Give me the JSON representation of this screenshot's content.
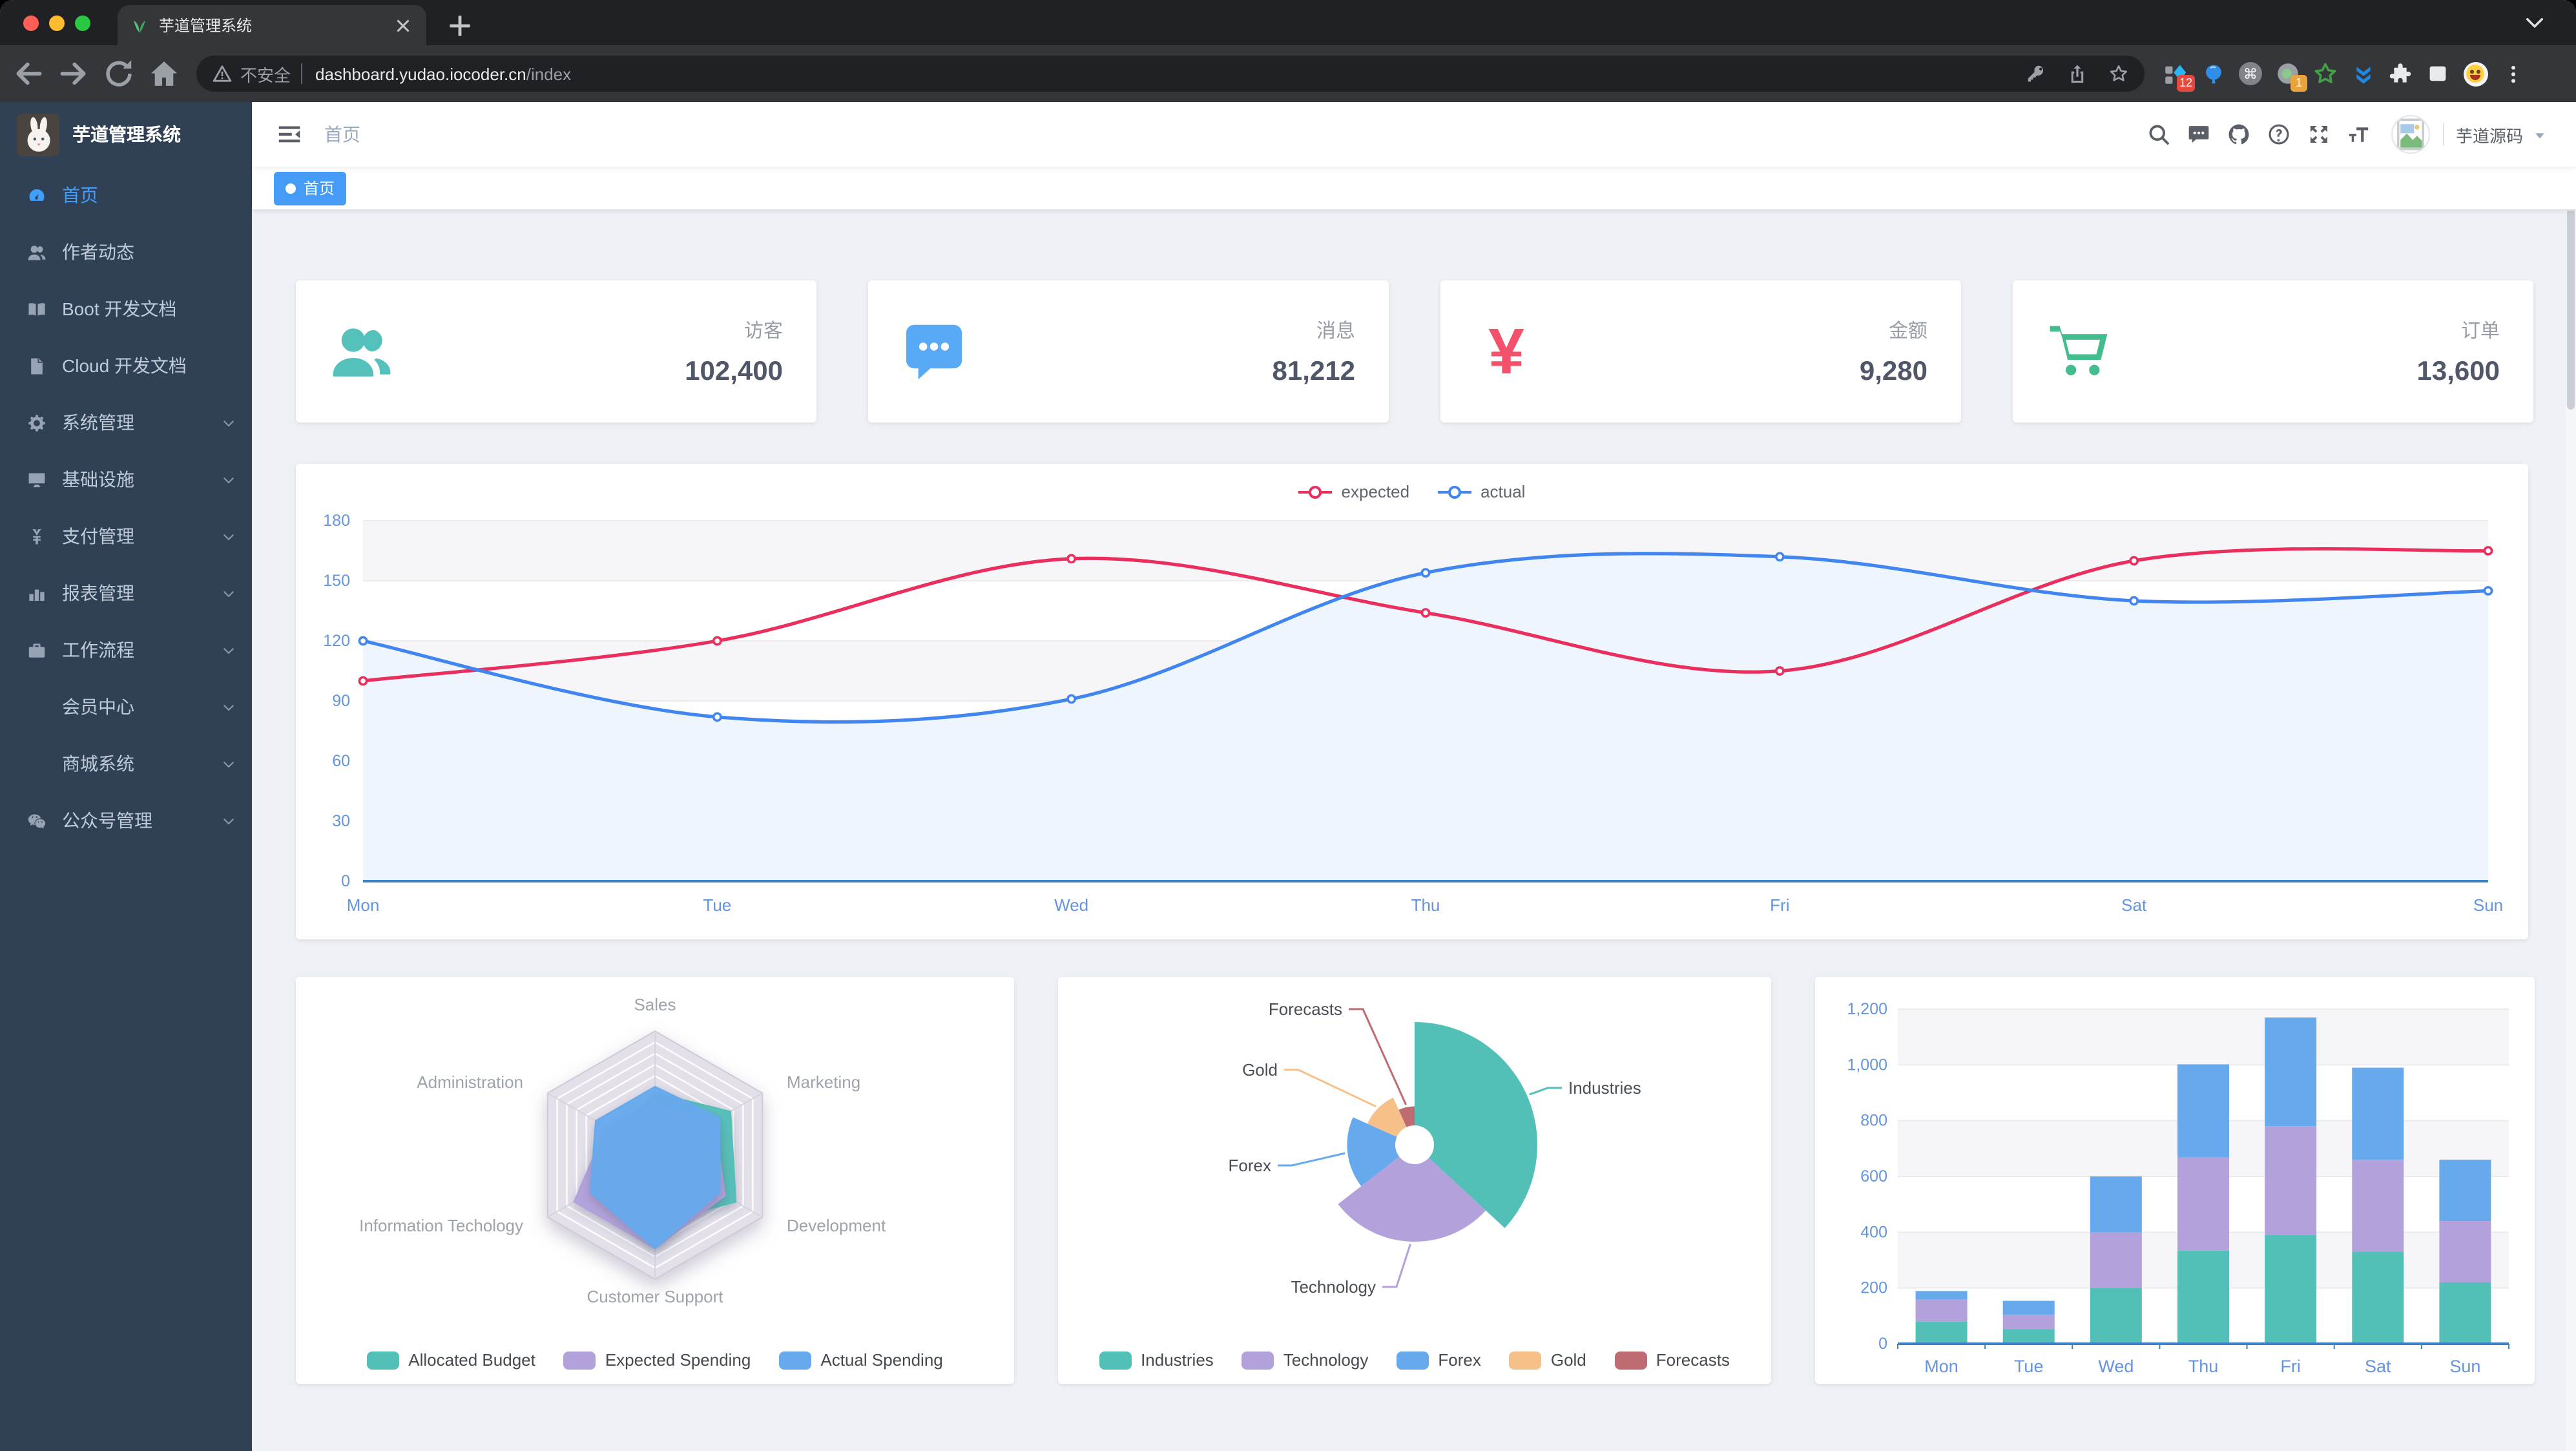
{
  "browser": {
    "tab_title": "芋道管理系统",
    "url": {
      "security": "不安全",
      "host": "dashboard.yudao.iocoder.cn",
      "path": "/index"
    },
    "extension_badges": {
      "red": "12",
      "orange": "1"
    },
    "traffic_lights": [
      "#ff5f57",
      "#febc2e",
      "#28c840"
    ]
  },
  "sidebar": {
    "logo_title": "芋道管理系统",
    "items": [
      {
        "icon": "dashboard-icon",
        "label": "首页",
        "active": true,
        "chevron": false
      },
      {
        "icon": "people-icon",
        "label": "作者动态",
        "chevron": false
      },
      {
        "icon": "education-icon",
        "label": "Boot 开发文档",
        "chevron": false
      },
      {
        "icon": "document-icon",
        "label": "Cloud 开发文档",
        "chevron": false
      },
      {
        "icon": "gear-icon",
        "label": "系统管理",
        "chevron": true
      },
      {
        "icon": "monitor-icon",
        "label": "基础设施",
        "chevron": true
      },
      {
        "icon": "yen-icon",
        "label": "支付管理",
        "chevron": true
      },
      {
        "icon": "chart-icon",
        "label": "报表管理",
        "chevron": true
      },
      {
        "icon": "briefcase-icon",
        "label": "工作流程",
        "chevron": true
      },
      {
        "icon": "",
        "label": "会员中心",
        "chevron": true
      },
      {
        "icon": "",
        "label": "商城系统",
        "chevron": true
      },
      {
        "icon": "wechat-icon",
        "label": "公众号管理",
        "chevron": true
      }
    ]
  },
  "navbar": {
    "breadcrumb": "首页",
    "username": "芋道源码"
  },
  "tags": [
    {
      "label": "首页",
      "active": true
    }
  ],
  "cards": [
    {
      "icon": "people-card-icon",
      "color": "#54C2BB",
      "label": "访客",
      "value": "102,400"
    },
    {
      "icon": "message-card-icon",
      "color": "#58A9F6",
      "label": "消息",
      "value": "81,212"
    },
    {
      "icon": "yen-card-icon",
      "color": "#F4516C",
      "label": "金额",
      "value": "9,280"
    },
    {
      "icon": "cart-card-icon",
      "color": "#43BD8D",
      "label": "订单",
      "value": "13,600"
    }
  ],
  "chart_data": [
    {
      "id": "line",
      "type": "line",
      "x": [
        "Mon",
        "Tue",
        "Wed",
        "Thu",
        "Fri",
        "Sat",
        "Sun"
      ],
      "series": [
        {
          "name": "expected",
          "color": "#EA2E5E",
          "values": [
            100,
            120,
            161,
            134,
            105,
            160,
            165
          ]
        },
        {
          "name": "actual",
          "color": "#4186F0",
          "area": "#EFF5FD",
          "values": [
            120,
            82,
            91,
            154,
            162,
            140,
            145
          ]
        }
      ],
      "ylim": [
        0,
        180
      ],
      "ystep": 30,
      "legend_position": "top",
      "grid": true
    },
    {
      "id": "radar",
      "type": "radar",
      "indicators": [
        {
          "name": "Sales",
          "max": 10000
        },
        {
          "name": "Marketing",
          "max": 20000
        },
        {
          "name": "Development",
          "max": 20000
        },
        {
          "name": "Customer Support",
          "max": 20000
        },
        {
          "name": "Information Techology",
          "max": 20000
        },
        {
          "name": "Administration",
          "max": 20000
        }
      ],
      "series": [
        {
          "name": "Allocated Budget",
          "color": "#53C0B8",
          "values": [
            5000,
            14000,
            15000,
            11000,
            12000,
            7000
          ]
        },
        {
          "name": "Expected Spending",
          "color": "#B3A1DC",
          "values": [
            4000,
            11000,
            13000,
            15000,
            15000,
            9000
          ]
        },
        {
          "name": "Actual Spending",
          "color": "#66A9EC",
          "values": [
            5500,
            12000,
            12000,
            15000,
            12000,
            11000
          ]
        }
      ],
      "legend_position": "bottom"
    },
    {
      "id": "pie",
      "type": "pie",
      "rose": true,
      "slices": [
        {
          "name": "Industries",
          "value": 320,
          "color": "#53C0B8",
          "label_at": [
            119,
            -44
          ],
          "anchor": "start"
        },
        {
          "name": "Technology",
          "value": 240,
          "color": "#B3A1DC",
          "label_at": [
            -30,
            110
          ],
          "anchor": "end"
        },
        {
          "name": "Forex",
          "value": 149,
          "color": "#66A9EC",
          "label_at": [
            -111,
            16
          ],
          "anchor": "end"
        },
        {
          "name": "Gold",
          "value": 100,
          "color": "#F5C189",
          "label_at": [
            -106,
            -58
          ],
          "anchor": "end"
        },
        {
          "name": "Forecasts",
          "value": 59,
          "color": "#BE6B72",
          "label_at": [
            -56,
            -105
          ],
          "anchor": "end"
        }
      ],
      "inner_radius_ratio": 0.158,
      "legend_position": "bottom"
    },
    {
      "id": "bar",
      "type": "bar",
      "stacked": true,
      "x": [
        "Mon",
        "Tue",
        "Wed",
        "Thu",
        "Fri",
        "Sat",
        "Sun"
      ],
      "series": [
        {
          "name": "",
          "color": "#53C0B8",
          "values": [
            79,
            52,
            200,
            334,
            390,
            330,
            220
          ]
        },
        {
          "name": "",
          "color": "#B3A1DC",
          "values": [
            80,
            52,
            200,
            334,
            390,
            330,
            220
          ]
        },
        {
          "name": "",
          "color": "#66A9EC",
          "values": [
            30,
            50,
            200,
            334,
            390,
            330,
            220
          ]
        }
      ],
      "ylim": [
        0,
        1200
      ],
      "ystep": 200,
      "ytick_labels": [
        "0",
        "200",
        "400",
        "600",
        "800",
        "1,000",
        "1,200"
      ],
      "legend": false
    }
  ]
}
